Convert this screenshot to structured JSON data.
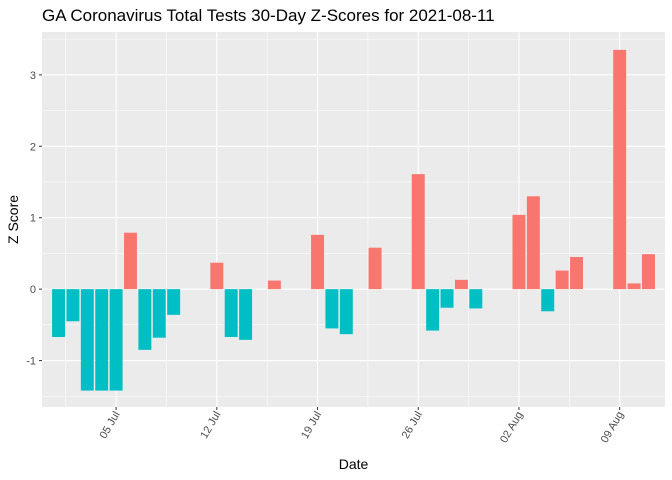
{
  "chart_data": {
    "type": "bar",
    "title": "GA Coronavirus Total Tests 30-Day Z-Scores for 2021-08-11",
    "xlabel": "Date",
    "ylabel": "Z Score",
    "ylim": [
      -1.65,
      3.6
    ],
    "y_ticks": [
      -1,
      0,
      1,
      2,
      3
    ],
    "x_ticks": [
      {
        "label": "05 Jul",
        "day": 6
      },
      {
        "label": "12 Jul",
        "day": 13
      },
      {
        "label": "19 Jul",
        "day": 20
      },
      {
        "label": "26 Jul",
        "day": 27
      },
      {
        "label": "02 Aug",
        "day": 34
      },
      {
        "label": "09 Aug",
        "day": 41
      }
    ],
    "grid": true,
    "legend": "none",
    "positive_color": "#F8766D",
    "negative_color": "#00BFC4",
    "background_color": "#EBEBEB",
    "bars": [
      {
        "day": 2,
        "value": -0.67
      },
      {
        "day": 3,
        "value": -0.45
      },
      {
        "day": 4,
        "value": -1.42
      },
      {
        "day": 5,
        "value": -1.42
      },
      {
        "day": 6,
        "value": -1.42
      },
      {
        "day": 7,
        "value": 0.79
      },
      {
        "day": 8,
        "value": -0.85
      },
      {
        "day": 9,
        "value": -0.68
      },
      {
        "day": 10,
        "value": -0.36
      },
      {
        "day": 13,
        "value": 0.37
      },
      {
        "day": 14,
        "value": -0.67
      },
      {
        "day": 15,
        "value": -0.71
      },
      {
        "day": 17,
        "value": 0.12
      },
      {
        "day": 20,
        "value": 0.76
      },
      {
        "day": 21,
        "value": -0.55
      },
      {
        "day": 22,
        "value": -0.63
      },
      {
        "day": 24,
        "value": 0.58
      },
      {
        "day": 27,
        "value": 1.61
      },
      {
        "day": 28,
        "value": -0.58
      },
      {
        "day": 29,
        "value": -0.26
      },
      {
        "day": 30,
        "value": 0.13
      },
      {
        "day": 31,
        "value": -0.27
      },
      {
        "day": 34,
        "value": 1.04
      },
      {
        "day": 35,
        "value": 1.3
      },
      {
        "day": 36,
        "value": -0.31
      },
      {
        "day": 37,
        "value": 0.26
      },
      {
        "day": 38,
        "value": 0.45
      },
      {
        "day": 41,
        "value": 3.35
      },
      {
        "day": 42,
        "value": 0.08
      },
      {
        "day": 43,
        "value": 0.49
      }
    ]
  }
}
